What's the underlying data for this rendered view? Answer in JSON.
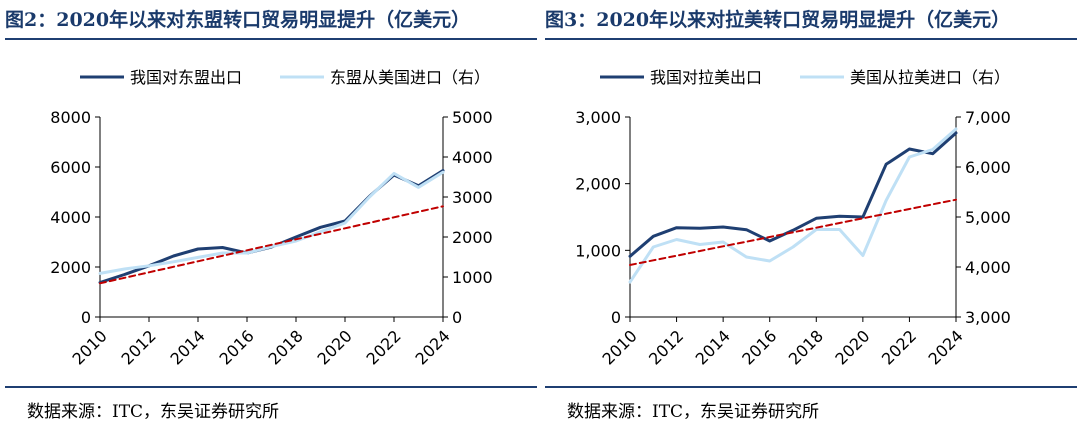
{
  "footer": {
    "left_source": "数据来源：ITC，东吴证券研究所",
    "right_source": "数据来源：ITC，东吴证券研究所"
  },
  "chart_data": [
    {
      "type": "line",
      "title": "图2：2020年以来对东盟转口贸易明显提升（亿美元）",
      "x": [
        2010,
        2011,
        2012,
        2013,
        2014,
        2015,
        2016,
        2017,
        2018,
        2019,
        2020,
        2021,
        2022,
        2023,
        2024
      ],
      "x_ticks": [
        "2010",
        "2012",
        "2014",
        "2016",
        "2018",
        "2020",
        "2022",
        "2024"
      ],
      "left_axis": {
        "ylim": [
          0,
          8000
        ],
        "ticks": [
          "0",
          "2000",
          "4000",
          "6000",
          "8000"
        ]
      },
      "right_axis": {
        "ylim": [
          0,
          5000
        ],
        "ticks": [
          "0",
          "1000",
          "2000",
          "3000",
          "4000",
          "5000"
        ]
      },
      "series": [
        {
          "name": "我国对东盟出口",
          "axis": "left",
          "color": "#1f3f72",
          "width": 3,
          "values": [
            1380,
            1700,
            2050,
            2440,
            2720,
            2780,
            2560,
            2800,
            3200,
            3590,
            3840,
            4830,
            5680,
            5250,
            5860
          ]
        },
        {
          "name": "东盟从美国进口（右）",
          "axis": "right",
          "color": "#bfe0f5",
          "width": 3,
          "values": [
            1090,
            1200,
            1280,
            1380,
            1490,
            1600,
            1600,
            1760,
            1900,
            2130,
            2350,
            3000,
            3590,
            3240,
            3620
          ]
        },
        {
          "name": "",
          "axis": "left",
          "color": "#c00000",
          "width": 2,
          "dash": true,
          "values": [
            1350,
            1570,
            1790,
            2010,
            2230,
            2450,
            2670,
            2890,
            3110,
            3330,
            3550,
            3770,
            3990,
            4210,
            4430
          ]
        }
      ]
    },
    {
      "type": "line",
      "title": "图3：2020年以来对拉美转口贸易明显提升（亿美元）",
      "x": [
        2010,
        2011,
        2012,
        2013,
        2014,
        2015,
        2016,
        2017,
        2018,
        2019,
        2020,
        2021,
        2022,
        2023,
        2024
      ],
      "x_ticks": [
        "2010",
        "2012",
        "2014",
        "2016",
        "2018",
        "2020",
        "2022",
        "2024"
      ],
      "left_axis": {
        "ylim": [
          0,
          3000
        ],
        "ticks": [
          "0",
          "1,000",
          "2,000",
          "3,000"
        ]
      },
      "right_axis": {
        "ylim": [
          3000,
          7000
        ],
        "ticks": [
          "3,000",
          "4,000",
          "5,000",
          "6,000",
          "7,000"
        ]
      },
      "series": [
        {
          "name": "我国对拉美出口",
          "axis": "left",
          "color": "#1f3f72",
          "width": 3,
          "values": [
            910,
            1210,
            1340,
            1330,
            1350,
            1310,
            1140,
            1300,
            1480,
            1510,
            1500,
            2290,
            2520,
            2450,
            2760
          ]
        },
        {
          "name": "美国从拉美进口（右）",
          "axis": "right",
          "color": "#bfe0f5",
          "width": 3,
          "values": [
            3700,
            4400,
            4550,
            4450,
            4500,
            4200,
            4120,
            4400,
            4750,
            4750,
            4230,
            5330,
            6200,
            6350,
            6760
          ]
        },
        {
          "name": "",
          "axis": "left",
          "color": "#c00000",
          "width": 2,
          "dash": true,
          "values": [
            780,
            850,
            920,
            990,
            1060,
            1130,
            1200,
            1270,
            1340,
            1410,
            1480,
            1550,
            1620,
            1690,
            1760
          ]
        }
      ]
    }
  ]
}
